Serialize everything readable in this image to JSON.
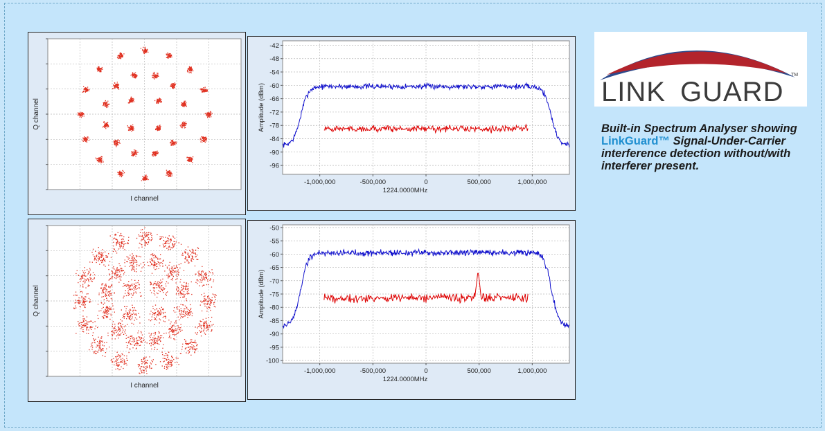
{
  "logo": {
    "text_main": "LINK",
    "text_rest": "GUARD",
    "trademark": "TM",
    "colors": {
      "swoosh_blue": "#2c4a8c",
      "swoosh_red": "#b3242c",
      "text": "#3b3b3b"
    }
  },
  "caption": {
    "part1": "Built-in Spectrum Analyser showing ",
    "brand": "LinkGuard™",
    "part2": " Signal-Under-Carrier interference detection without/with interferer present."
  },
  "colors": {
    "scatter_points": "#e03020",
    "trace_blue": "#1010cc",
    "trace_red": "#dd0000",
    "panel_bg": "#dfeaf6",
    "plot_bg": "#ffffff",
    "grid": "#b8b8b8"
  },
  "chart_data": [
    {
      "id": "constellation-top",
      "type": "scatter",
      "xlabel": "I channel",
      "ylabel": "Q channel",
      "description_pattern": "32-APSK constellation, tight clusters",
      "rings": [
        {
          "points": 4,
          "radius": 0.28,
          "offset_deg": 45
        },
        {
          "points": 12,
          "radius": 0.58,
          "offset_deg": 15
        },
        {
          "points": 16,
          "radius": 0.92,
          "offset_deg": 0
        }
      ],
      "spread": 0.045
    },
    {
      "id": "spectrum-top",
      "type": "line",
      "xlabel": "1224.0000MHz",
      "ylabel": "Amplitude (dBm)",
      "xticks": [
        "-1,000,000",
        "-500,000",
        "0",
        "500,000",
        "1,000,000"
      ],
      "xtick_values": [
        -1000000,
        -500000,
        0,
        500000,
        1000000
      ],
      "yticks": [
        "-42",
        "-48",
        "-54",
        "-60",
        "-66",
        "-72",
        "-78",
        "-84",
        "-90",
        "-96"
      ],
      "ytick_values": [
        -42,
        -48,
        -54,
        -60,
        -66,
        -72,
        -78,
        -84,
        -90,
        -96
      ],
      "xlim": [
        -1350000,
        1350000
      ],
      "ylim": [
        -100,
        -40
      ],
      "series": [
        {
          "color": "blue",
          "shape": "carrier",
          "floor": -87,
          "plateau": -60.5,
          "edge_low": -1180000,
          "edge_high": 1180000,
          "noise": 1.4
        },
        {
          "color": "red",
          "shape": "flat",
          "level": -79.5,
          "x_start": -960000,
          "x_end": 960000,
          "noise": 1.6
        }
      ]
    },
    {
      "id": "constellation-bottom",
      "type": "scatter",
      "xlabel": "I channel",
      "ylabel": "Q channel",
      "description_pattern": "32-APSK constellation smeared by interference",
      "rings": [
        {
          "points": 4,
          "radius": 0.28,
          "offset_deg": 45
        },
        {
          "points": 12,
          "radius": 0.58,
          "offset_deg": 15
        },
        {
          "points": 16,
          "radius": 0.92,
          "offset_deg": 0
        }
      ],
      "spread": 0.14
    },
    {
      "id": "spectrum-bottom",
      "type": "line",
      "xlabel": "1224.0000MHz",
      "ylabel": "Amplitude (dBm)",
      "xticks": [
        "-1,000,000",
        "-500,000",
        "0",
        "500,000",
        "1,000,000"
      ],
      "xtick_values": [
        -1000000,
        -500000,
        0,
        500000,
        1000000
      ],
      "yticks": [
        "-50",
        "-55",
        "-60",
        "-65",
        "-70",
        "-75",
        "-80",
        "-85",
        "-90",
        "-95",
        "-100"
      ],
      "ytick_values": [
        -50,
        -55,
        -60,
        -65,
        -70,
        -75,
        -80,
        -85,
        -90,
        -95,
        -100
      ],
      "xlim": [
        -1350000,
        1350000
      ],
      "ylim": [
        -101,
        -49
      ],
      "series": [
        {
          "color": "blue",
          "shape": "carrier",
          "floor": -87,
          "plateau": -59.5,
          "edge_low": -1180000,
          "edge_high": 1180000,
          "noise": 1.4
        },
        {
          "color": "red",
          "shape": "flat_with_spike",
          "level": -76.5,
          "x_start": -960000,
          "x_end": 960000,
          "noise": 1.7,
          "spike_x": 490000,
          "spike_level": -66
        }
      ]
    }
  ]
}
